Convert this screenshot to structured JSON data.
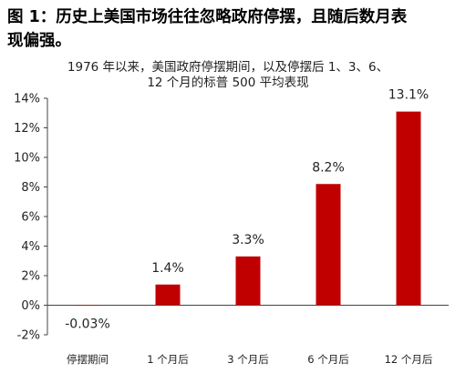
{
  "figure": {
    "title_line1": "图 1：历史上美国市场往往忽略政府停摆，且随后数月表",
    "title_line2": "现偏强。"
  },
  "chart_data": {
    "type": "bar",
    "title_lines": [
      "1976 年以来，美国政府停摆期间，以及停摆后 1、3、6、",
      "12 个月的标普 500 平均表现"
    ],
    "categories": [
      "停摆期间",
      "1 个月后",
      "3 个月后",
      "6 个月后",
      "12 个月后"
    ],
    "values": [
      -0.03,
      1.4,
      3.3,
      8.2,
      13.1
    ],
    "data_labels": [
      "-0.03%",
      "1.4%",
      "3.3%",
      "8.2%",
      "13.1%"
    ],
    "ylim": [
      -2,
      14
    ],
    "yticks": [
      -2,
      0,
      2,
      4,
      6,
      8,
      10,
      12,
      14
    ],
    "ytick_labels": [
      "-2%",
      "0%",
      "2%",
      "4%",
      "6%",
      "8%",
      "10%",
      "12%",
      "14%"
    ],
    "xlabel": "",
    "ylabel": "",
    "grid": false,
    "bar_color": "#c00000"
  }
}
